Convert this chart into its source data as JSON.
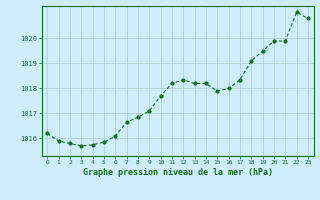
{
  "x": [
    0,
    1,
    2,
    3,
    4,
    5,
    6,
    7,
    8,
    9,
    10,
    11,
    12,
    13,
    14,
    15,
    16,
    17,
    18,
    19,
    20,
    21,
    22,
    23
  ],
  "y": [
    1016.2,
    1015.9,
    1015.8,
    1015.7,
    1015.75,
    1015.85,
    1016.1,
    1016.65,
    1016.85,
    1017.1,
    1017.7,
    1018.2,
    1018.35,
    1018.2,
    1018.2,
    1017.9,
    1018.0,
    1018.35,
    1019.1,
    1019.5,
    1019.9,
    1019.9,
    1021.05,
    1020.8
  ],
  "line_color": "#1a6e1a",
  "marker_color": "#1a6e1a",
  "bg_color": "#cceeff",
  "grid_color": "#aacccc",
  "xlabel": "Graphe pression niveau de la mer (hPa)",
  "xlabel_color": "#1a6e1a",
  "tick_color": "#1a6e1a",
  "ylim": [
    1015.3,
    1021.3
  ],
  "yticks": [
    1016,
    1017,
    1018,
    1019,
    1020
  ],
  "xlim": [
    -0.5,
    23.5
  ],
  "xticks": [
    0,
    1,
    2,
    3,
    4,
    5,
    6,
    7,
    8,
    9,
    10,
    11,
    12,
    13,
    14,
    15,
    16,
    17,
    18,
    19,
    20,
    21,
    22,
    23
  ]
}
